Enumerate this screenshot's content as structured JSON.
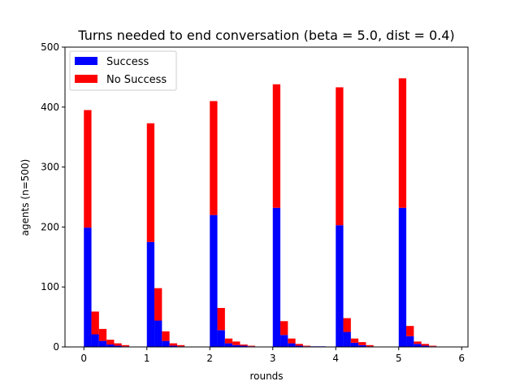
{
  "chart_data": {
    "type": "bar",
    "stacked": true,
    "title": "Turns needed to end conversation (beta = 5.0, dist = 0.4)",
    "xlabel": "rounds",
    "ylabel": "agents (n=500)",
    "xlim": [
      -0.3,
      6.1
    ],
    "ylim": [
      0,
      500
    ],
    "xticks": [
      0,
      1,
      2,
      3,
      4,
      5,
      6
    ],
    "yticks": [
      0,
      100,
      200,
      300,
      400,
      500
    ],
    "bin_width": 0.12,
    "legend_position": "top-left",
    "colors": {
      "Success": "#0000ff",
      "No Success": "#ff0000"
    },
    "bin_starts": [
      0.0,
      0.12,
      0.24,
      0.36,
      0.48,
      0.6,
      0.72,
      0.84,
      1.0,
      1.12,
      1.24,
      1.36,
      1.48,
      1.6,
      1.72,
      1.84,
      2.0,
      2.12,
      2.24,
      2.36,
      2.48,
      2.6,
      2.72,
      2.84,
      3.0,
      3.12,
      3.24,
      3.36,
      3.48,
      3.6,
      3.72,
      3.84,
      4.0,
      4.12,
      4.24,
      4.36,
      4.48,
      4.6,
      4.72,
      4.84,
      5.0,
      5.12,
      5.24,
      5.36,
      5.48,
      5.6,
      5.72
    ],
    "series": [
      {
        "name": "Success",
        "values": [
          199,
          21,
          10,
          4,
          2,
          1,
          0,
          0,
          175,
          44,
          10,
          2,
          1,
          0,
          0,
          0,
          220,
          28,
          6,
          3,
          2,
          1,
          0,
          0,
          232,
          20,
          6,
          2,
          1,
          1,
          1,
          0,
          203,
          25,
          7,
          3,
          1,
          0,
          0,
          0,
          232,
          18,
          5,
          2,
          1,
          0,
          0
        ]
      },
      {
        "name": "No Success",
        "values": [
          196,
          38,
          20,
          8,
          4,
          2,
          0,
          0,
          198,
          54,
          16,
          4,
          2,
          0,
          0,
          0,
          190,
          37,
          8,
          6,
          2,
          1,
          0,
          0,
          206,
          23,
          8,
          3,
          1,
          0,
          0,
          0,
          230,
          23,
          7,
          5,
          2,
          0,
          0,
          0,
          216,
          17,
          4,
          3,
          1,
          0,
          0
        ]
      }
    ]
  }
}
